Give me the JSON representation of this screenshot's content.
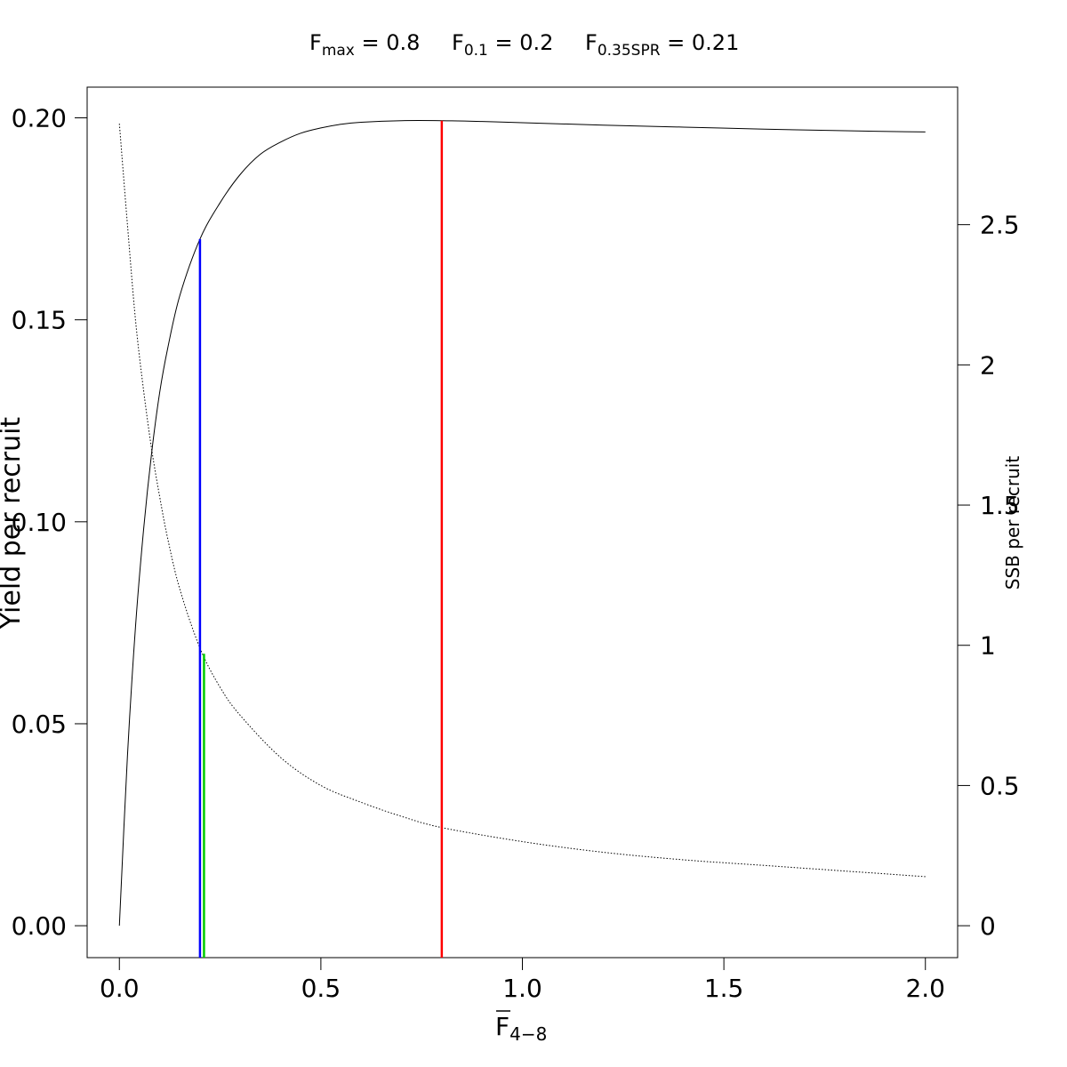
{
  "header": {
    "fmax": {
      "base": "F",
      "sub": "max",
      "value": " = 0.8"
    },
    "f01": {
      "base": "F",
      "sub": "0.1",
      "value": " = 0.2"
    },
    "fspr": {
      "base": "F",
      "sub": "0.35SPR",
      "value": " = 0.21"
    }
  },
  "chart_data": {
    "type": "line",
    "xlabel": {
      "base": "F",
      "sub": "4−8",
      "overline": true
    },
    "ylabel_left": "Yield per recruit",
    "ylabel_right": "SSB per recruit",
    "xlim": [
      -0.08,
      2.08
    ],
    "ylim_left": [
      -0.0079,
      0.2076
    ],
    "ylim_right": [
      -0.1138,
      2.9904
    ],
    "x_ticks": [
      0.0,
      0.5,
      1.0,
      1.5,
      2.0
    ],
    "x_tick_labels": [
      "0.0",
      "0.5",
      "1.0",
      "1.5",
      "2.0"
    ],
    "y_left_ticks": [
      0.0,
      0.05,
      0.1,
      0.15,
      0.2
    ],
    "y_left_tick_labels": [
      "0.00",
      "0.05",
      "0.10",
      "0.15",
      "0.20"
    ],
    "y_right_ticks": [
      0,
      0.5,
      1,
      1.5,
      2,
      2.5
    ],
    "y_right_tick_labels": [
      "0",
      "0.5",
      "1",
      "1.5",
      "2",
      "2.5"
    ],
    "grid": false,
    "series": [
      {
        "axis": "left",
        "style": "solid",
        "color": "#000000",
        "x": [
          0.0,
          0.02,
          0.04,
          0.06,
          0.08,
          0.1,
          0.12,
          0.15,
          0.2,
          0.25,
          0.3,
          0.35,
          0.4,
          0.45,
          0.5,
          0.55,
          0.6,
          0.7,
          0.8,
          0.9,
          1.0,
          1.2,
          1.4,
          1.6,
          1.8,
          2.0
        ],
        "y": [
          0.0,
          0.042,
          0.074,
          0.098,
          0.117,
          0.132,
          0.143,
          0.156,
          0.17,
          0.179,
          0.186,
          0.191,
          0.194,
          0.1962,
          0.1975,
          0.1984,
          0.1989,
          0.1993,
          0.1993,
          0.1991,
          0.1988,
          0.1982,
          0.1977,
          0.1972,
          0.1968,
          0.1965
        ]
      },
      {
        "axis": "right",
        "style": "dotted",
        "color": "#000000",
        "x": [
          0.0,
          0.02,
          0.04,
          0.06,
          0.08,
          0.1,
          0.12,
          0.15,
          0.2,
          0.25,
          0.3,
          0.4,
          0.5,
          0.6,
          0.7,
          0.8,
          1.0,
          1.2,
          1.4,
          1.6,
          1.8,
          2.0
        ],
        "y": [
          2.86,
          2.5,
          2.16,
          1.91,
          1.7,
          1.53,
          1.38,
          1.2,
          0.99,
          0.85,
          0.75,
          0.6,
          0.5,
          0.44,
          0.39,
          0.35,
          0.3,
          0.262,
          0.235,
          0.215,
          0.195,
          0.175
        ]
      }
    ],
    "reference_lines": [
      {
        "label": "Fmax",
        "x": 0.8,
        "axis": "left",
        "y_top": 0.1993,
        "color": "#ff0000"
      },
      {
        "label": "F0.1",
        "x": 0.2,
        "axis": "left",
        "y_top": 0.17,
        "color": "#0000ff"
      },
      {
        "label": "F0.35SPR",
        "x": 0.21,
        "axis": "right",
        "y_top": 0.97,
        "color": "#00cc00"
      }
    ]
  }
}
